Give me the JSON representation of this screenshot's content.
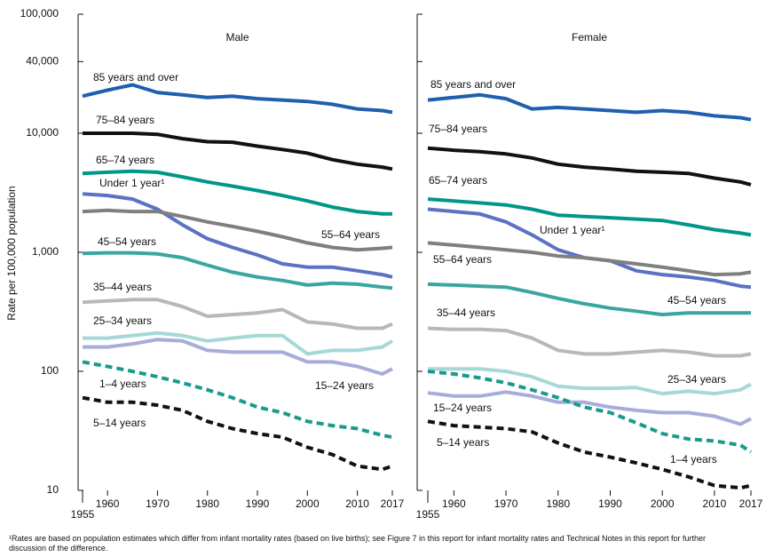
{
  "chart_data": [
    {
      "type": "line",
      "title": "Male",
      "y_label": "Rate per 100,000 population",
      "log_scale": true,
      "xlim": [
        1955,
        2017
      ],
      "xticks": [
        1955,
        1960,
        1970,
        1980,
        1990,
        2000,
        2010,
        2017
      ],
      "ylim": [
        10,
        100000
      ],
      "yticks": [
        {
          "value": 100000,
          "label": "100,000"
        },
        {
          "value": 40000,
          "label": "40,000"
        },
        {
          "value": 10000,
          "label": "10,000"
        },
        {
          "value": 1000,
          "label": "1,000"
        },
        100,
        10
      ],
      "x": [
        1955,
        1960,
        1965,
        1970,
        1975,
        1980,
        1985,
        1990,
        1995,
        2000,
        2005,
        2010,
        2015,
        2017
      ],
      "series": [
        {
          "name": "85 years and over",
          "color": "#1f5fae",
          "values": [
            20500,
            23000,
            25500,
            22000,
            21000,
            20000,
            20500,
            19500,
            19000,
            18500,
            17500,
            16000,
            15500,
            15000
          ]
        },
        {
          "name": "75–84 years",
          "color": "#111111",
          "values": [
            10000,
            10000,
            10000,
            9800,
            9000,
            8500,
            8400,
            7800,
            7300,
            6800,
            6000,
            5500,
            5200,
            5000
          ]
        },
        {
          "name": "65–74 years",
          "color": "#00968a",
          "values": [
            4600,
            4700,
            4800,
            4700,
            4300,
            3900,
            3600,
            3300,
            3000,
            2700,
            2400,
            2200,
            2100,
            2100
          ]
        },
        {
          "name": "Under 1 year¹",
          "color": "#5b72c4",
          "values": [
            3100,
            3000,
            2800,
            2300,
            1700,
            1300,
            1100,
            950,
            800,
            750,
            750,
            700,
            650,
            620
          ]
        },
        {
          "name": "55–64 years",
          "color": "#7f7f7f",
          "values": [
            2200,
            2250,
            2200,
            2200,
            2000,
            1800,
            1650,
            1500,
            1350,
            1200,
            1100,
            1050,
            1080,
            1100
          ]
        },
        {
          "name": "45–54 years",
          "color": "#3aa6a0",
          "values": [
            980,
            990,
            990,
            970,
            900,
            780,
            680,
            620,
            580,
            530,
            550,
            540,
            510,
            500
          ]
        },
        {
          "name": "35–44 years",
          "color": "#b8b8b8",
          "values": [
            380,
            390,
            400,
            400,
            350,
            290,
            300,
            310,
            330,
            260,
            250,
            230,
            230,
            250
          ]
        },
        {
          "name": "25–34 years",
          "color": "#a6d8d6",
          "values": [
            190,
            190,
            200,
            210,
            200,
            180,
            190,
            200,
            200,
            140,
            150,
            150,
            160,
            180
          ]
        },
        {
          "name": "15–24 years",
          "color": "#a7acd9",
          "values": [
            160,
            160,
            170,
            185,
            180,
            150,
            145,
            145,
            145,
            120,
            120,
            110,
            95,
            105
          ]
        },
        {
          "name": "1–4 years",
          "color": "#1a9a8e",
          "linestyle": "dashed",
          "values": [
            120,
            110,
            100,
            90,
            80,
            70,
            60,
            50,
            45,
            38,
            35,
            33,
            29,
            28
          ]
        },
        {
          "name": "5–14 years",
          "color": "#111111",
          "linestyle": "dashed",
          "values": [
            60,
            55,
            55,
            52,
            47,
            38,
            33,
            30,
            28,
            23,
            20,
            16,
            15,
            16
          ]
        }
      ]
    },
    {
      "type": "line",
      "title": "Female",
      "log_scale": true,
      "xlim": [
        1955,
        2017
      ],
      "xticks": [
        1955,
        1960,
        1970,
        1980,
        1990,
        2000,
        2010,
        2017
      ],
      "ylim": [
        10,
        100000
      ],
      "yticks": [
        100000,
        40000,
        10000,
        1000,
        100,
        10
      ],
      "x": [
        1955,
        1960,
        1965,
        1970,
        1975,
        1980,
        1985,
        1990,
        1995,
        2000,
        2005,
        2010,
        2015,
        2017
      ],
      "series": [
        {
          "name": "85 years and over",
          "color": "#1f5fae",
          "values": [
            19000,
            20000,
            21000,
            19500,
            16000,
            16500,
            16000,
            15500,
            15000,
            15500,
            15000,
            14000,
            13500,
            13000
          ]
        },
        {
          "name": "75–84 years",
          "color": "#111111",
          "values": [
            7500,
            7200,
            7000,
            6700,
            6200,
            5500,
            5200,
            5000,
            4800,
            4700,
            4600,
            4200,
            3900,
            3700
          ]
        },
        {
          "name": "65–74 years",
          "color": "#00968a",
          "values": [
            2800,
            2700,
            2600,
            2500,
            2300,
            2050,
            2000,
            1950,
            1900,
            1850,
            1700,
            1550,
            1450,
            1400
          ]
        },
        {
          "name": "Under 1 year¹",
          "color": "#5b72c4",
          "values": [
            2300,
            2200,
            2100,
            1800,
            1400,
            1050,
            900,
            850,
            700,
            650,
            620,
            580,
            520,
            510
          ]
        },
        {
          "name": "55–64 years",
          "color": "#7f7f7f",
          "values": [
            1200,
            1150,
            1100,
            1050,
            1000,
            930,
            900,
            850,
            800,
            750,
            700,
            650,
            660,
            680
          ]
        },
        {
          "name": "45–54 years",
          "color": "#3aa6a0",
          "values": [
            540,
            530,
            520,
            510,
            460,
            410,
            370,
            340,
            320,
            300,
            310,
            310,
            310,
            310
          ]
        },
        {
          "name": "35–44 years",
          "color": "#b8b8b8",
          "values": [
            230,
            225,
            225,
            220,
            190,
            150,
            140,
            140,
            145,
            150,
            145,
            135,
            135,
            140
          ]
        },
        {
          "name": "25–34 years",
          "color": "#a6d8d6",
          "values": [
            105,
            105,
            105,
            100,
            90,
            75,
            72,
            72,
            73,
            65,
            68,
            65,
            70,
            78
          ]
        },
        {
          "name": "15–24 years",
          "color": "#a7acd9",
          "values": [
            66,
            62,
            62,
            67,
            62,
            55,
            55,
            50,
            47,
            45,
            45,
            42,
            36,
            40
          ]
        },
        {
          "name": "1–4 years",
          "color": "#1a9a8e",
          "linestyle": "dashed",
          "values": [
            100,
            95,
            88,
            80,
            70,
            60,
            50,
            45,
            37,
            30,
            27,
            26,
            24,
            21
          ]
        },
        {
          "name": "5–14 years",
          "color": "#111111",
          "linestyle": "dashed",
          "values": [
            38,
            35,
            34,
            33,
            31,
            25,
            21,
            19,
            17,
            15,
            13,
            11,
            10.5,
            11
          ]
        }
      ]
    }
  ],
  "footnote": "¹Rates are based on population estimates which differ from infant mortality rates (based on live births); see Figure 7 in this report for infant mortality rates and Technical Notes in this report for further discussion of the difference."
}
